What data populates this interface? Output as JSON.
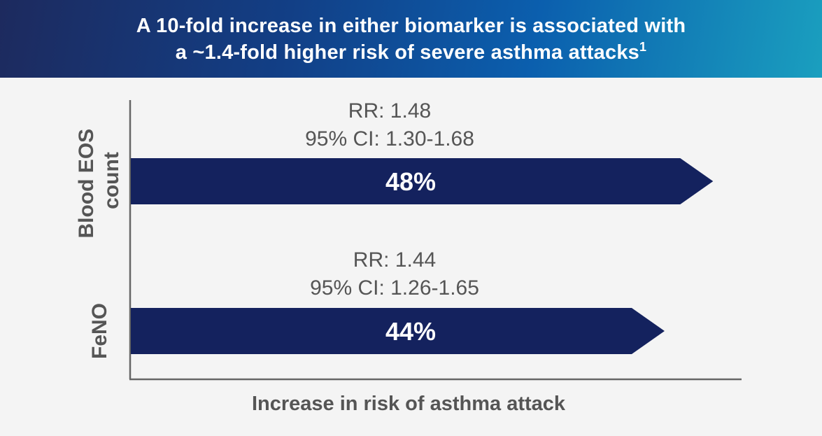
{
  "header": {
    "title_line1": "A 10-fold increase in either biomarker is associated with",
    "title_line2": "a ~1.4-fold higher risk of severe asthma attacks",
    "title_sup": "1"
  },
  "colors": {
    "bar": "#14225e",
    "axis": "#666666",
    "text": "#555555"
  },
  "chart_data": {
    "type": "bar",
    "orientation": "horizontal",
    "categories": [
      {
        "label_lines": [
          "Blood EOS",
          "count"
        ]
      },
      {
        "label_lines": [
          "FeNO"
        ]
      }
    ],
    "values": [
      48,
      44
    ],
    "value_labels": [
      "48%",
      "44%"
    ],
    "annotations": [
      {
        "rr": "RR: 1.48",
        "ci": "95% CI: 1.30-1.68"
      },
      {
        "rr": "RR: 1.44",
        "ci": "95% CI: 1.26-1.65"
      }
    ],
    "xlabel": "Increase in risk of asthma attack",
    "ylabel": "",
    "xlim": [
      0,
      53
    ],
    "grid": false
  }
}
